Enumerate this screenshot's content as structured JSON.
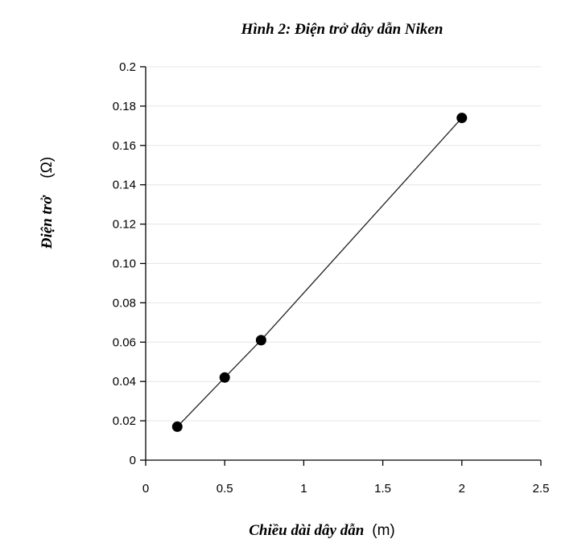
{
  "chart_data": {
    "type": "line",
    "title": "Hình 2: Điện trở dây dẫn Niken",
    "xlabel": "Chiều dài dây dẫn",
    "xunit": "(m)",
    "ylabel": "Điện trở",
    "yunit": "(Ω)",
    "xlim": [
      0,
      2.5
    ],
    "ylim": [
      0,
      0.2
    ],
    "x_ticks": [
      "0",
      "0.5",
      "1",
      "1.5",
      "2",
      "2.5"
    ],
    "y_ticks": [
      "0",
      "0.02",
      "0.04",
      "0.06",
      "0.08",
      "0.10",
      "0.12",
      "0.14",
      "0.16",
      "0.18",
      "0.2"
    ],
    "grid": true,
    "series": [
      {
        "x": [
          0.2,
          0.5,
          0.73,
          2.0
        ],
        "y": [
          0.017,
          0.042,
          0.061,
          0.174
        ]
      }
    ]
  }
}
